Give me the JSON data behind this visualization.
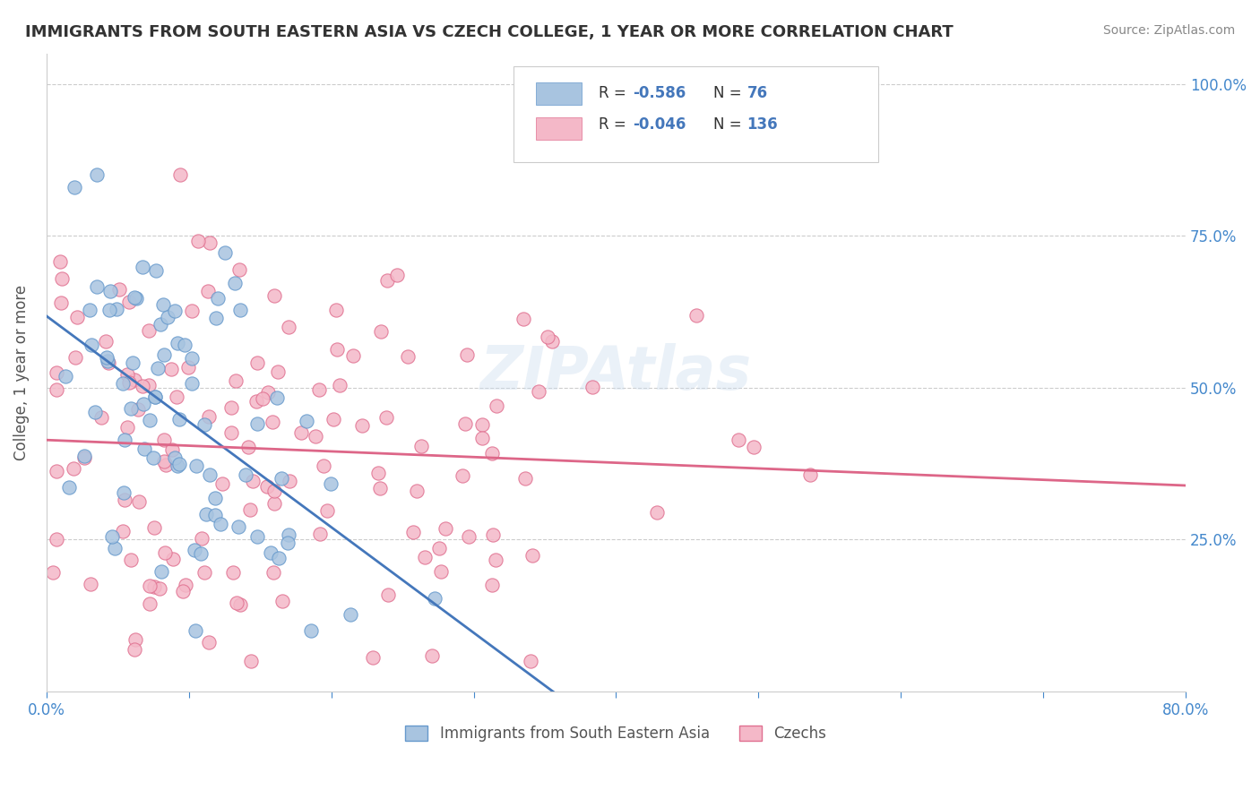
{
  "title": "IMMIGRANTS FROM SOUTH EASTERN ASIA VS CZECH COLLEGE, 1 YEAR OR MORE CORRELATION CHART",
  "source": "Source: ZipAtlas.com",
  "ylabel": "College, 1 year or more",
  "xlim": [
    0.0,
    0.8
  ],
  "ylim": [
    0.0,
    1.05
  ],
  "ytick_values": [
    0.25,
    0.5,
    0.75,
    1.0
  ],
  "watermark": "ZIPAtlas",
  "series1_color": "#a8c4e0",
  "series1_edge": "#6699cc",
  "series2_color": "#f4b8c8",
  "series2_edge": "#e07090",
  "line1_color": "#4477bb",
  "line2_color": "#dd6688",
  "legend_label1": "Immigrants from South Eastern Asia",
  "legend_label2": "Czechs",
  "R1": -0.586,
  "N1": 76,
  "R2": -0.046,
  "N2": 136,
  "background_color": "#ffffff",
  "grid_color": "#cccccc",
  "title_color": "#333333",
  "axis_label_color": "#555555",
  "tick_color": "#4488cc",
  "seed1": 42,
  "seed2": 7
}
